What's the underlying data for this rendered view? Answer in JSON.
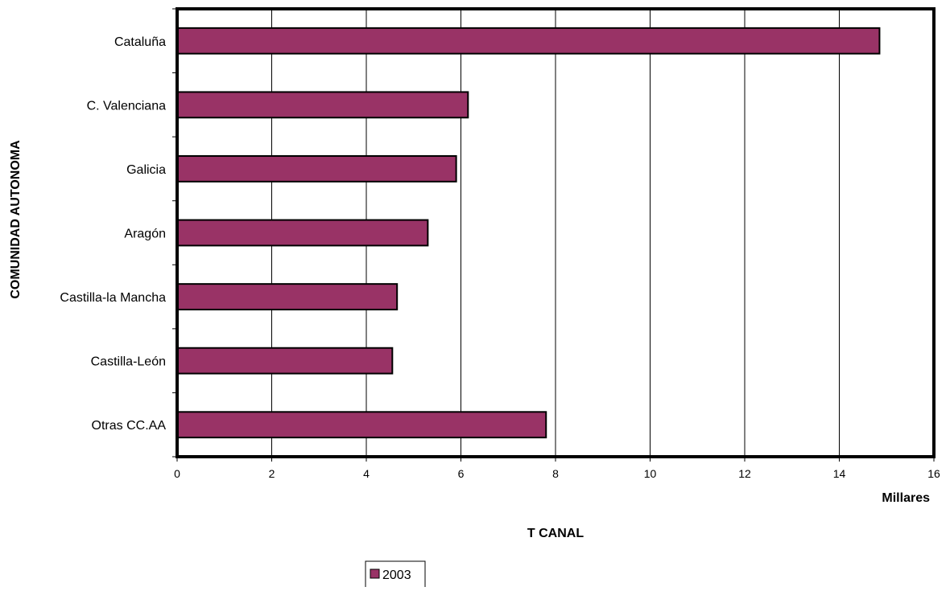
{
  "chart_data": {
    "type": "bar",
    "orientation": "horizontal",
    "categories": [
      "Cataluña",
      "C. Valenciana",
      "Galicia",
      "Aragón",
      "Castilla-la Mancha",
      "Castilla-León",
      "Otras CC.AA"
    ],
    "series": [
      {
        "name": "2003",
        "values": [
          14.85,
          6.15,
          5.9,
          5.3,
          4.65,
          4.55,
          7.8
        ]
      }
    ],
    "xlim": [
      0,
      16
    ],
    "xticks": [
      0,
      2,
      4,
      6,
      8,
      10,
      12,
      14,
      16
    ],
    "unit_label": "Millares",
    "xlabel": "T CANAL",
    "ylabel": "COMUNIDAD AUTONOMA",
    "legend_position": "bottom-center",
    "grid": "vertical",
    "bar_color": "#993366"
  }
}
